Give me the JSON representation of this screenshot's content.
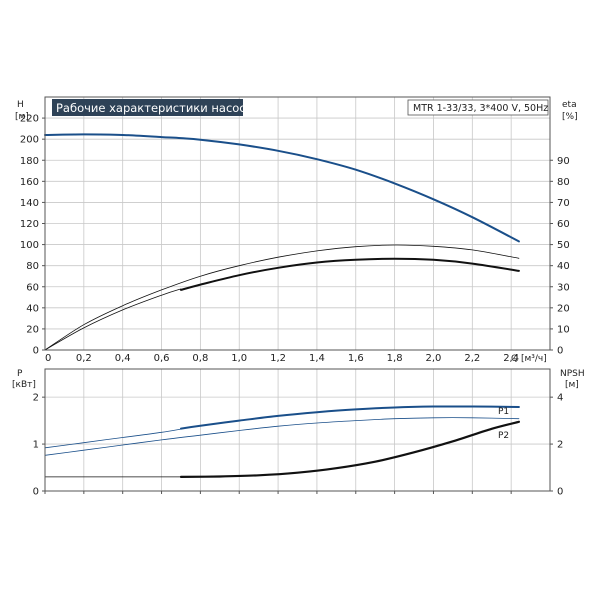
{
  "title": "Рабочие характеристики насоса",
  "pump_info": "MTR 1-33/33, 3*400 V, 50Hz",
  "colors": {
    "blue": "#1a4f8a",
    "black": "#111111",
    "title_bg": "#2e4257"
  },
  "chart_data": [
    {
      "type": "line",
      "panel": "top",
      "x_label": "Q [м³/ч]",
      "x_ticks": [
        "0",
        "0,2",
        "0,4",
        "0,6",
        "0,8",
        "1,0",
        "1,2",
        "1,4",
        "1,6",
        "1,8",
        "2,0",
        "2,2",
        "2,4"
      ],
      "xlim": [
        0,
        2.6
      ],
      "y_left": {
        "name": "H",
        "unit": "[м]",
        "ylim": [
          0,
          240
        ],
        "ticks": [
          "0",
          "20",
          "40",
          "60",
          "80",
          "100",
          "120",
          "140",
          "160",
          "180",
          "200",
          "220"
        ]
      },
      "y_right": {
        "name": "eta",
        "unit": "[%]",
        "ylim": [
          0,
          120
        ],
        "ticks": [
          "0",
          "10",
          "20",
          "30",
          "40",
          "50",
          "60",
          "70",
          "80",
          "90"
        ]
      },
      "grid": true,
      "series": [
        {
          "axis": "left",
          "color": "blue",
          "width": 2,
          "points": [
            [
              0,
              204
            ],
            [
              0.2,
              204.5
            ],
            [
              0.4,
              204
            ],
            [
              0.6,
              202
            ],
            [
              0.7,
              201
            ],
            [
              0.8,
              199.5
            ],
            [
              1.0,
              195
            ],
            [
              1.2,
              189
            ],
            [
              1.4,
              181
            ],
            [
              1.6,
              171
            ],
            [
              1.8,
              158
            ],
            [
              2.0,
              143
            ],
            [
              2.2,
              126
            ],
            [
              2.44,
              103
            ]
          ]
        },
        {
          "axis": "right",
          "color": "black",
          "width": 0.8,
          "points": [
            [
              0,
              0
            ],
            [
              0.2,
              12
            ],
            [
              0.4,
              21
            ],
            [
              0.6,
              28.5
            ],
            [
              0.8,
              35
            ],
            [
              1.0,
              40
            ],
            [
              1.2,
              44
            ],
            [
              1.4,
              47
            ],
            [
              1.6,
              49
            ],
            [
              1.8,
              49.8
            ],
            [
              2.0,
              49.2
            ],
            [
              2.2,
              47.5
            ],
            [
              2.44,
              43.5
            ]
          ]
        },
        {
          "axis": "right",
          "color": "black",
          "width": 0.8,
          "points": [
            [
              0,
              0
            ],
            [
              0.2,
              10.5
            ],
            [
              0.4,
              19
            ],
            [
              0.6,
              26
            ],
            [
              0.7,
              29
            ]
          ]
        },
        {
          "axis": "right",
          "color": "black",
          "width": 2,
          "points": [
            [
              0.7,
              28.5
            ],
            [
              0.8,
              31
            ],
            [
              1.0,
              35.5
            ],
            [
              1.2,
              39
            ],
            [
              1.4,
              41.5
            ],
            [
              1.6,
              42.8
            ],
            [
              1.8,
              43.3
            ],
            [
              2.0,
              42.8
            ],
            [
              2.2,
              41
            ],
            [
              2.44,
              37.5
            ]
          ]
        }
      ]
    },
    {
      "type": "line",
      "panel": "bottom",
      "xlim": [
        0,
        2.6
      ],
      "y_left": {
        "name": "P",
        "unit": "[кВт]",
        "ylim": [
          0,
          2.6
        ],
        "ticks": [
          "0",
          "1",
          "2"
        ]
      },
      "y_right": {
        "name": "NPSH",
        "unit": "[м]",
        "ylim": [
          0,
          5.2
        ],
        "ticks": [
          "0",
          "2",
          "4"
        ]
      },
      "grid": true,
      "series": [
        {
          "name": "P1",
          "axis": "left",
          "color": "blue",
          "width": 0.8,
          "points": [
            [
              0,
              0.92
            ],
            [
              0.2,
              1.03
            ],
            [
              0.4,
              1.14
            ],
            [
              0.6,
              1.25
            ],
            [
              0.7,
              1.32
            ]
          ]
        },
        {
          "name": "P1",
          "axis": "left",
          "color": "blue",
          "width": 2,
          "points": [
            [
              0.7,
              1.33
            ],
            [
              0.8,
              1.39
            ],
            [
              1.0,
              1.5
            ],
            [
              1.2,
              1.6
            ],
            [
              1.4,
              1.68
            ],
            [
              1.6,
              1.74
            ],
            [
              1.8,
              1.78
            ],
            [
              2.0,
              1.8
            ],
            [
              2.2,
              1.8
            ],
            [
              2.44,
              1.79
            ]
          ]
        },
        {
          "name": "P2",
          "axis": "left",
          "color": "blue",
          "width": 0.8,
          "points": [
            [
              0,
              0.76
            ],
            [
              0.2,
              0.87
            ],
            [
              0.4,
              0.98
            ],
            [
              0.6,
              1.09
            ],
            [
              0.8,
              1.19
            ],
            [
              1.0,
              1.29
            ],
            [
              1.2,
              1.38
            ],
            [
              1.4,
              1.45
            ],
            [
              1.6,
              1.5
            ],
            [
              1.8,
              1.54
            ],
            [
              2.0,
              1.56
            ],
            [
              2.2,
              1.56
            ],
            [
              2.44,
              1.54
            ]
          ]
        },
        {
          "axis": "right",
          "color": "black",
          "width": 0.8,
          "points": [
            [
              0,
              0.6
            ],
            [
              0.7,
              0.6
            ]
          ]
        },
        {
          "axis": "right",
          "color": "black",
          "width": 2.2,
          "points": [
            [
              0.7,
              0.6
            ],
            [
              0.9,
              0.62
            ],
            [
              1.1,
              0.67
            ],
            [
              1.3,
              0.78
            ],
            [
              1.5,
              0.97
            ],
            [
              1.7,
              1.25
            ],
            [
              1.9,
              1.65
            ],
            [
              2.1,
              2.12
            ],
            [
              2.3,
              2.65
            ],
            [
              2.44,
              2.95
            ]
          ]
        }
      ]
    }
  ]
}
